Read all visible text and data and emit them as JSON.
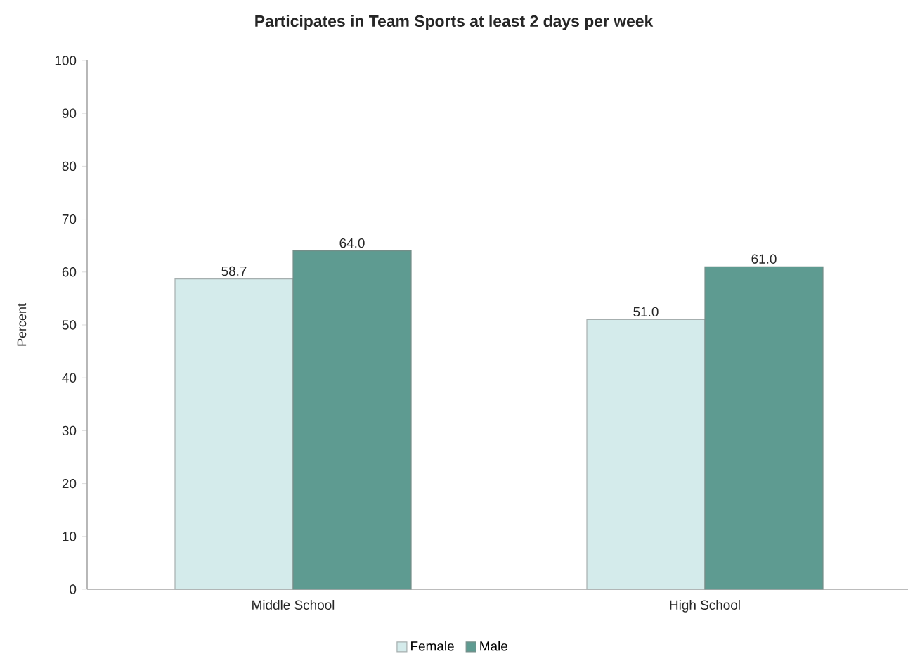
{
  "chart_data": {
    "type": "bar",
    "title": "Participates in Team Sports at least 2 days per week",
    "ylabel": "Percent",
    "categories": [
      "Middle School",
      "High School"
    ],
    "series": [
      {
        "name": "Female",
        "color": "#d4ebeb",
        "values": [
          58.7,
          51.0
        ],
        "value_labels": [
          "58.7",
          "51.0"
        ]
      },
      {
        "name": "Male",
        "color": "#5e9b91",
        "values": [
          64.0,
          61.0
        ],
        "value_labels": [
          "64.0",
          "61.0"
        ]
      }
    ],
    "ylim": [
      0,
      100
    ],
    "yticks": [
      0,
      10,
      20,
      30,
      40,
      50,
      60,
      70,
      80,
      90,
      100
    ],
    "legend": "bottom"
  }
}
